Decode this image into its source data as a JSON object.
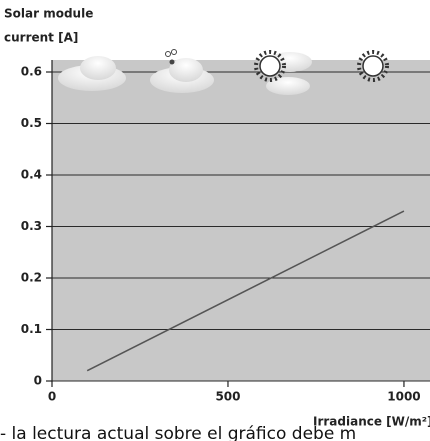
{
  "chart_data": {
    "type": "line",
    "ylabel_lines": [
      "Solar module",
      "current [A]"
    ],
    "xlabel": "Irradiance [W/m²]",
    "annotation": "- la lectura actual sobre el gráfico debe m",
    "series": [
      {
        "color": "#555555",
        "x": [
          100,
          1000
        ],
        "values": [
          0.02,
          0.33
        ]
      }
    ],
    "xlim": [
      0,
      1074
    ],
    "xticks": [
      0,
      500,
      1000
    ],
    "ylim": [
      0,
      0.6
    ],
    "yticks": [
      0,
      0.1,
      0.2,
      0.3,
      0.4,
      0.5,
      0.6
    ],
    "grid": true
  }
}
